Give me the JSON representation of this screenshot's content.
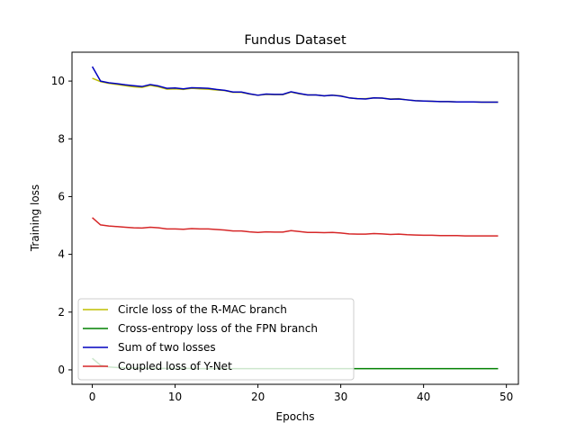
{
  "chart_data": {
    "type": "line",
    "title": "Fundus Dataset",
    "xlabel": "Epochs",
    "ylabel": "Training loss",
    "xlim": [
      -2.45,
      51.45
    ],
    "ylim": [
      -0.5,
      11.0
    ],
    "xticks": [
      0,
      10,
      20,
      30,
      40,
      50
    ],
    "yticks": [
      0,
      2,
      4,
      6,
      8,
      10
    ],
    "grid": false,
    "legend_position": "lower-left",
    "x": [
      0,
      1,
      2,
      3,
      4,
      5,
      6,
      7,
      8,
      9,
      10,
      11,
      12,
      13,
      14,
      15,
      16,
      17,
      18,
      19,
      20,
      21,
      22,
      23,
      24,
      25,
      26,
      27,
      28,
      29,
      30,
      31,
      32,
      33,
      34,
      35,
      36,
      37,
      38,
      39,
      40,
      41,
      42,
      43,
      44,
      45,
      46,
      47,
      48,
      49
    ],
    "series": [
      {
        "name": "Circle loss of the R-MAC branch",
        "color": "#bfbf00",
        "values": [
          10.1,
          9.98,
          9.92,
          9.88,
          9.84,
          9.8,
          9.78,
          9.85,
          9.8,
          9.72,
          9.73,
          9.71,
          9.75,
          9.73,
          9.72,
          9.69,
          9.67,
          9.61,
          9.61,
          9.55,
          9.51,
          9.54,
          9.53,
          9.53,
          9.62,
          9.56,
          9.52,
          9.52,
          9.49,
          9.51,
          9.49,
          9.42,
          9.39,
          9.39,
          9.42,
          9.41,
          9.38,
          9.39,
          9.35,
          9.32,
          9.31,
          9.3,
          9.29,
          9.29,
          9.28,
          9.28,
          9.28,
          9.27,
          9.27,
          9.27
        ]
      },
      {
        "name": "Cross-entropy loss of the FPN branch",
        "color": "#008000",
        "values": [
          0.4,
          0.16,
          0.1,
          0.08,
          0.07,
          0.06,
          0.06,
          0.05,
          0.05,
          0.05,
          0.05,
          0.05,
          0.05,
          0.04,
          0.04,
          0.04,
          0.04,
          0.04,
          0.04,
          0.04,
          0.04,
          0.04,
          0.04,
          0.04,
          0.04,
          0.04,
          0.04,
          0.04,
          0.04,
          0.04,
          0.04,
          0.04,
          0.04,
          0.04,
          0.04,
          0.04,
          0.04,
          0.04,
          0.04,
          0.04,
          0.04,
          0.04,
          0.04,
          0.04,
          0.04,
          0.04,
          0.04,
          0.04,
          0.04,
          0.04
        ]
      },
      {
        "name": "Sum of two losses",
        "color": "#0000bf",
        "values": [
          10.5,
          10.0,
          9.94,
          9.91,
          9.87,
          9.84,
          9.81,
          9.88,
          9.83,
          9.75,
          9.76,
          9.73,
          9.77,
          9.76,
          9.75,
          9.71,
          9.68,
          9.62,
          9.62,
          9.56,
          9.51,
          9.55,
          9.54,
          9.54,
          9.63,
          9.57,
          9.52,
          9.52,
          9.49,
          9.51,
          9.48,
          9.42,
          9.39,
          9.38,
          9.42,
          9.41,
          9.37,
          9.38,
          9.35,
          9.32,
          9.31,
          9.3,
          9.29,
          9.29,
          9.28,
          9.28,
          9.28,
          9.27,
          9.27,
          9.27
        ]
      },
      {
        "name": "Coupled loss of Y-Net",
        "color": "#d62728",
        "values": [
          5.27,
          5.02,
          4.98,
          4.96,
          4.94,
          4.92,
          4.91,
          4.94,
          4.92,
          4.88,
          4.88,
          4.87,
          4.89,
          4.88,
          4.88,
          4.86,
          4.84,
          4.81,
          4.81,
          4.78,
          4.76,
          4.78,
          4.77,
          4.77,
          4.82,
          4.79,
          4.76,
          4.76,
          4.75,
          4.76,
          4.74,
          4.71,
          4.7,
          4.7,
          4.72,
          4.71,
          4.69,
          4.7,
          4.68,
          4.67,
          4.66,
          4.66,
          4.65,
          4.65,
          4.65,
          4.64,
          4.64,
          4.64,
          4.64,
          4.64
        ]
      }
    ]
  }
}
